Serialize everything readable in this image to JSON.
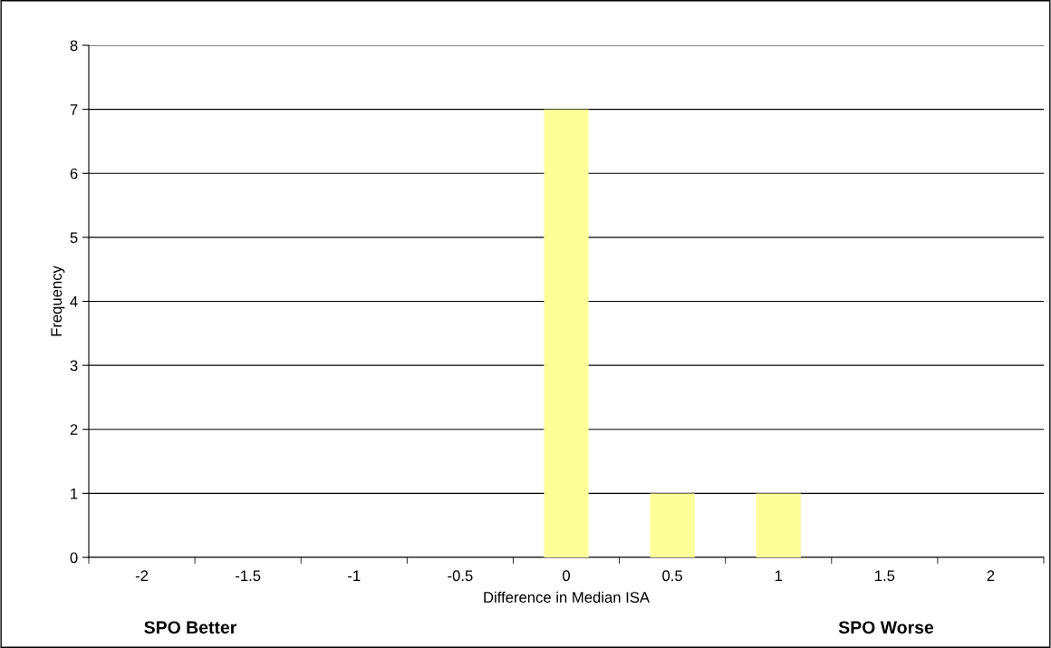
{
  "chart_data": {
    "type": "bar",
    "xlabel": "Difference in Median ISA",
    "ylabel": "Frequency",
    "categories": [
      "-2",
      "-1.5",
      "-1",
      "-0.5",
      "0",
      "0.5",
      "1",
      "1.5",
      "2"
    ],
    "values": [
      0,
      0,
      0,
      0,
      7,
      1,
      1,
      0,
      0
    ],
    "color": "#ffff99",
    "ylim": [
      0,
      8
    ],
    "yticks": [
      0,
      1,
      2,
      3,
      4,
      5,
      6,
      7,
      8
    ],
    "grid": "y",
    "annotations": [
      "SPO Better",
      "SPO Worse"
    ]
  }
}
